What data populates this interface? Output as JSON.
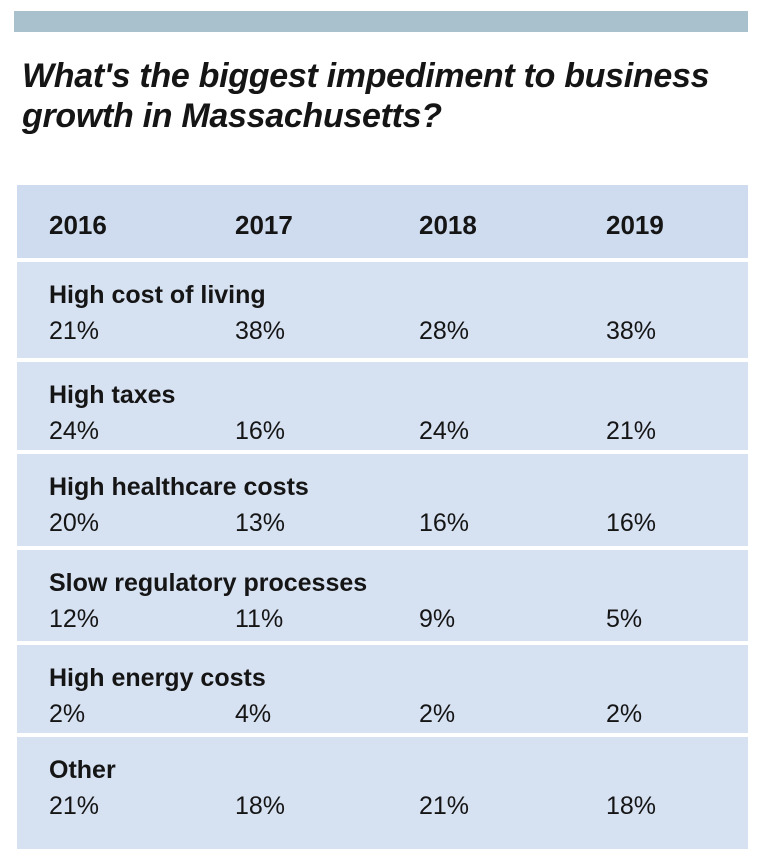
{
  "title": "What's the biggest impediment to business growth in Massachusetts?",
  "chart_data": {
    "type": "table",
    "title": "What's the biggest impediment to business growth in Massachusetts?",
    "columns": [
      "2016",
      "2017",
      "2018",
      "2019"
    ],
    "rows": [
      {
        "label": "High cost of living",
        "values": [
          "21%",
          "38%",
          "28%",
          "38%"
        ]
      },
      {
        "label": "High taxes",
        "values": [
          "24%",
          "16%",
          "24%",
          "21%"
        ]
      },
      {
        "label": "High healthcare costs",
        "values": [
          "20%",
          "13%",
          "16%",
          "16%"
        ]
      },
      {
        "label": "Slow regulatory processes",
        "values": [
          "12%",
          "11%",
          "9%",
          "5%"
        ]
      },
      {
        "label": "High energy costs",
        "values": [
          "2%",
          "4%",
          "2%",
          "2%"
        ]
      },
      {
        "label": "Other",
        "values": [
          "21%",
          "18%",
          "21%",
          "18%"
        ]
      }
    ]
  },
  "colors": {
    "top_bar": "#a9c0cd",
    "table_background": "#d6e1f2",
    "separator": "#ffffff",
    "text": "#151515"
  }
}
